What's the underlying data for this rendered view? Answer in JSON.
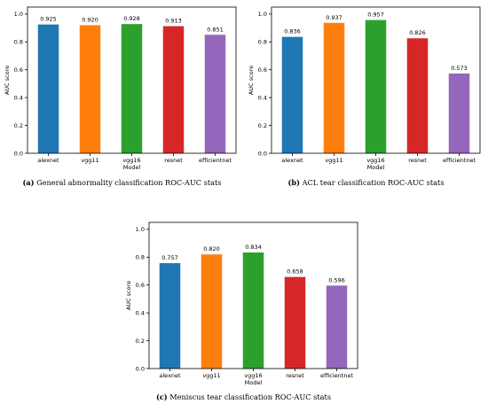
{
  "chart_data": [
    {
      "type": "bar",
      "categories": [
        "alexnet",
        "vgg11",
        "vgg16",
        "resnet",
        "efficientnet"
      ],
      "values": [
        0.925,
        0.92,
        0.928,
        0.913,
        0.851
      ],
      "value_labels": [
        "0.925",
        "0.920",
        "0.928",
        "0.913",
        "0.851"
      ],
      "xlabel": "Model",
      "ylabel": "AUC score",
      "ylim": [
        0,
        1.05
      ],
      "yticks": [
        "0.0",
        "0.2",
        "0.4",
        "0.6",
        "0.8",
        "1.0"
      ],
      "colors": [
        "#1f77b4",
        "#ff7f0e",
        "#2ca02c",
        "#d62728",
        "#9467bd"
      ],
      "grid": false,
      "caption_tag": "(a)",
      "caption_text": "General abnormality classification ROC-AUC stats"
    },
    {
      "type": "bar",
      "categories": [
        "alexnet",
        "vgg11",
        "vgg16",
        "resnet",
        "efficientnet"
      ],
      "values": [
        0.836,
        0.937,
        0.957,
        0.826,
        0.573
      ],
      "value_labels": [
        "0.836",
        "0.937",
        "0.957",
        "0.826",
        "0.573"
      ],
      "xlabel": "Model",
      "ylabel": "AUC score",
      "ylim": [
        0,
        1.05
      ],
      "yticks": [
        "0.0",
        "0.2",
        "0.4",
        "0.6",
        "0.8",
        "1.0"
      ],
      "colors": [
        "#1f77b4",
        "#ff7f0e",
        "#2ca02c",
        "#d62728",
        "#9467bd"
      ],
      "grid": false,
      "caption_tag": "(b)",
      "caption_text": "ACL tear classification ROC-AUC stats"
    },
    {
      "type": "bar",
      "categories": [
        "alexnet",
        "vgg11",
        "vgg16",
        "resnet",
        "efficientnet"
      ],
      "values": [
        0.757,
        0.82,
        0.834,
        0.658,
        0.596
      ],
      "value_labels": [
        "0.757",
        "0.820",
        "0.834",
        "0.658",
        "0.596"
      ],
      "xlabel": "Model",
      "ylabel": "AUC score",
      "ylim": [
        0,
        1.05
      ],
      "yticks": [
        "0.0",
        "0.2",
        "0.4",
        "0.6",
        "0.8",
        "1.0"
      ],
      "colors": [
        "#1f77b4",
        "#ff7f0e",
        "#2ca02c",
        "#d62728",
        "#9467bd"
      ],
      "grid": false,
      "caption_tag": "(c)",
      "caption_text": "Meniscus tear classification ROC-AUC stats"
    }
  ]
}
